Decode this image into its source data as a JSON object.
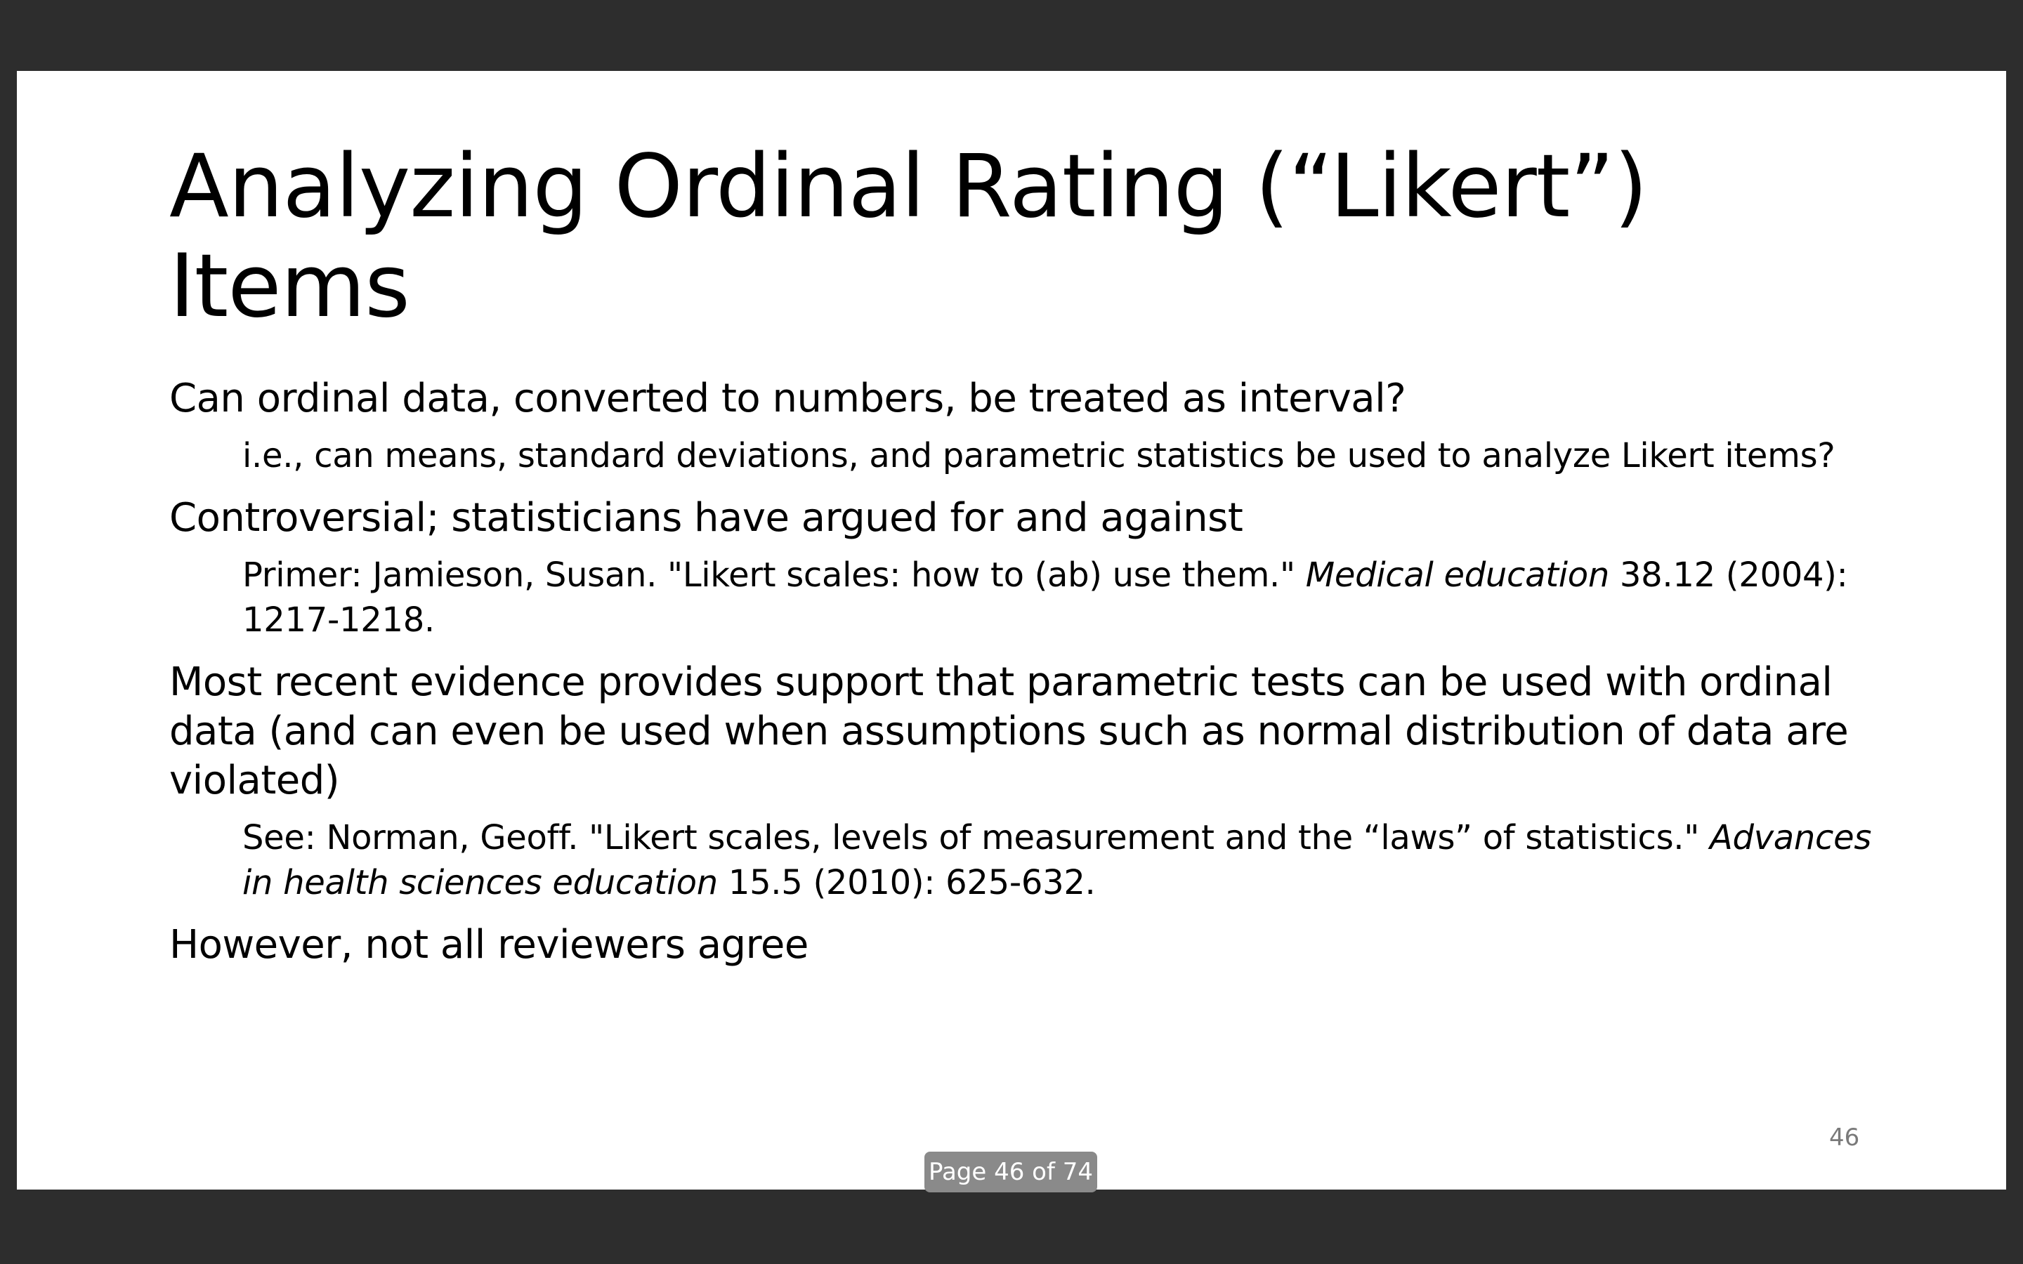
{
  "slide": {
    "title": "Analyzing Ordinal Rating (“Likert”) Items",
    "bullets": [
      {
        "text": "Can ordinal data, converted to numbers, be treated as interval?",
        "sub": {
          "text": "i.e., can means, standard deviations, and parametric statistics be used to analyze Likert items?"
        }
      },
      {
        "text": "Controversial; statisticians have argued for and against",
        "sub": {
          "pre": "Primer: Jamieson, Susan. \"Likert scales: how to (ab) use them.\" ",
          "italic": "Medical education",
          "post": " 38.12 (2004): 1217-1218."
        }
      },
      {
        "text": "Most recent evidence provides support that parametric tests can be used with ordinal data (and can even be used when assumptions such as normal distribution of data are violated)",
        "sub": {
          "pre": "See: Norman, Geoff. \"Likert scales, levels of measurement and the “laws” of statistics.\" ",
          "italic": "Advances in health sciences education",
          "post": " 15.5 (2010): 625-632."
        }
      },
      {
        "text": "However, not all reviewers agree"
      }
    ],
    "slide_number": "46"
  },
  "viewer": {
    "page_indicator": "Page 46 of 74",
    "background_color": "#2d2d2d"
  }
}
